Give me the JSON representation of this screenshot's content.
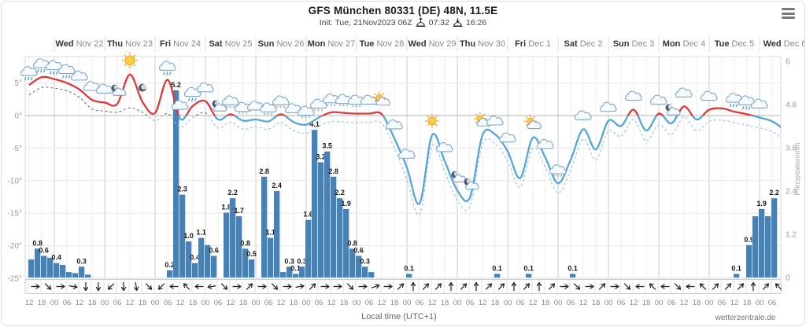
{
  "header": {
    "title": "GFS München 80331 (DE) 48N, 11.5E",
    "init_line": "Init: Tue, 21Nov2023 06Z",
    "sunrise_time": "07:32",
    "sunset_time": "16:26"
  },
  "footer": {
    "xlabel": "Local time (UTC+1)",
    "credit": "wetterzentrale.de"
  },
  "chart_data": {
    "type": "line+bar",
    "title": "GFS meteogram: 2m temperature / dewpoint lines with 3h precipitation bars and 6h wind arrows",
    "days": [
      {
        "day": "Wed",
        "date": "Nov 22"
      },
      {
        "day": "Thu",
        "date": "Nov 23"
      },
      {
        "day": "Fri",
        "date": "Nov 24"
      },
      {
        "day": "Sat",
        "date": "Nov 25"
      },
      {
        "day": "Sun",
        "date": "Nov 26"
      },
      {
        "day": "Mon",
        "date": "Nov 27"
      },
      {
        "day": "Tue",
        "date": "Nov 28"
      },
      {
        "day": "Wed",
        "date": "Nov 29"
      },
      {
        "day": "Thu",
        "date": "Nov 30"
      },
      {
        "day": "Fri",
        "date": "Dec 1"
      },
      {
        "day": "Sat",
        "date": "Dec 2"
      },
      {
        "day": "Sun",
        "date": "Dec 3"
      },
      {
        "day": "Mon",
        "date": "Dec 4"
      },
      {
        "day": "Tue",
        "date": "Dec 5"
      },
      {
        "day": "Wed",
        "date": "Dec 6"
      }
    ],
    "hours_per_step": 6,
    "hour_label_cycle": [
      "12",
      "18",
      "00",
      "06"
    ],
    "temp_axis": {
      "ticks": [
        5,
        0,
        -5,
        -10,
        -15,
        -20,
        -25
      ],
      "unit": "°"
    },
    "precip_axis": {
      "ticks": [
        6,
        4.8,
        3.6,
        2.4,
        1.2,
        0
      ],
      "label": "Precipitation/mm"
    },
    "temperature_c": [
      4.7,
      5.9,
      5.6,
      5.0,
      4.0,
      2.4,
      2.0,
      1.8,
      6.3,
      2.1,
      0.4,
      5.5,
      -0.5,
      1.5,
      2.2,
      -0.6,
      0.2,
      -0.8,
      -0.6,
      -0.9,
      0.2,
      -1.0,
      -1.4,
      -0.3,
      0.5,
      0.4,
      0.3,
      0.3,
      0.2,
      -3.5,
      -8.0,
      -13.5,
      -3.0,
      -7.0,
      -11.5,
      -12.6,
      -3.0,
      -2.9,
      -5.5,
      -9.6,
      -3.4,
      -6.5,
      -10.4,
      -6.8,
      -2.1,
      -5.2,
      -0.8,
      -1.6,
      0.9,
      -2.3,
      0.3,
      -1.2,
      1.4,
      -0.6,
      0.9,
      1.1,
      0.6,
      0.2,
      -0.3,
      -0.9,
      -2.2
    ],
    "dewpoint_c": [
      3.2,
      4.3,
      4.2,
      3.8,
      2.8,
      1.0,
      0.7,
      0.5,
      1.2,
      0.5,
      -0.8,
      0.3,
      -1.8,
      -0.3,
      0.4,
      -1.9,
      -1.0,
      -2.1,
      -1.7,
      -2.1,
      -1.1,
      -2.3,
      -2.7,
      -1.6,
      -0.9,
      -1.0,
      -1.1,
      -1.0,
      -1.2,
      -5.0,
      -9.8,
      -15.2,
      -4.6,
      -8.6,
      -13.0,
      -14.0,
      -4.4,
      -4.3,
      -7.0,
      -11.0,
      -5.0,
      -8.0,
      -11.9,
      -8.4,
      -3.6,
      -6.8,
      -2.4,
      -3.2,
      -0.6,
      -3.9,
      -1.4,
      -2.9,
      -0.2,
      -2.3,
      -0.9,
      -0.7,
      -1.1,
      -1.5,
      -1.9,
      -2.5,
      -3.8
    ],
    "precip_bars_3h": [
      [
        0,
        0.5,
        ""
      ],
      [
        1,
        0.8,
        "0.8"
      ],
      [
        2,
        0.6,
        "0.6"
      ],
      [
        3,
        0.55,
        ""
      ],
      [
        4,
        0.4,
        "0.4"
      ],
      [
        5,
        0.35,
        ""
      ],
      [
        6,
        0.15,
        ""
      ],
      [
        7,
        0.12,
        ""
      ],
      [
        8,
        0.3,
        "0.3"
      ],
      [
        9,
        0.08,
        ""
      ],
      [
        22,
        0.2,
        "0.2"
      ],
      [
        23,
        5.2,
        "5.2"
      ],
      [
        24,
        2.3,
        "2.3"
      ],
      [
        25,
        1.0,
        "1.0"
      ],
      [
        26,
        0.4,
        "0.4"
      ],
      [
        27,
        1.1,
        "1.1"
      ],
      [
        28,
        0.9,
        ""
      ],
      [
        29,
        0.6,
        "0.6"
      ],
      [
        31,
        1.8,
        "1.8"
      ],
      [
        32,
        2.2,
        "2.2"
      ],
      [
        33,
        1.7,
        "1.7"
      ],
      [
        34,
        0.8,
        "0.8"
      ],
      [
        35,
        0.5,
        "0.5"
      ],
      [
        37,
        2.8,
        "2.8"
      ],
      [
        38,
        1.1,
        "1.1"
      ],
      [
        39,
        2.4,
        "2.4"
      ],
      [
        40,
        0.15,
        ""
      ],
      [
        41,
        0.3,
        "0.3"
      ],
      [
        42,
        0.1,
        "0.1"
      ],
      [
        43,
        0.3,
        "0.3"
      ],
      [
        44,
        1.6,
        "1.6"
      ],
      [
        45,
        4.1,
        "4.1"
      ],
      [
        46,
        3.2,
        "3.2"
      ],
      [
        47,
        3.5,
        "3.5"
      ],
      [
        48,
        2.8,
        "2.8"
      ],
      [
        49,
        2.2,
        "2.2"
      ],
      [
        50,
        1.9,
        "1.9"
      ],
      [
        51,
        0.8,
        "0.8"
      ],
      [
        52,
        0.6,
        "0.6"
      ],
      [
        53,
        0.3,
        "0.3"
      ],
      [
        54,
        0.15,
        ""
      ],
      [
        60,
        0.1,
        "0.1"
      ],
      [
        74,
        0.1,
        "0.1"
      ],
      [
        79,
        0.1,
        "0.1"
      ],
      [
        86,
        0.1,
        "0.1"
      ],
      [
        112,
        0.1,
        "0.1"
      ],
      [
        114,
        0.9,
        "0.9"
      ],
      [
        115,
        1.7,
        ""
      ],
      [
        116,
        1.9,
        "1.9"
      ],
      [
        117,
        1.7,
        ""
      ],
      [
        118,
        2.2,
        "2.2"
      ]
    ],
    "wind_rotations_deg": [
      90,
      135,
      90,
      100,
      180,
      180,
      225,
      180,
      170,
      135,
      225,
      270,
      315,
      270,
      260,
      135,
      90,
      45,
      90,
      135,
      90,
      80,
      45,
      90,
      90,
      135,
      90,
      70,
      90,
      45,
      0,
      45,
      45,
      0,
      45,
      0,
      45,
      45,
      0,
      45,
      0,
      45,
      90,
      135,
      90,
      45,
      90,
      135,
      270,
      315,
      270,
      135,
      270,
      315,
      45,
      45,
      45,
      0,
      45,
      315
    ],
    "weather_icons": [
      [
        0,
        "rain"
      ],
      [
        1,
        "rain"
      ],
      [
        2,
        "rain"
      ],
      [
        3,
        "rain"
      ],
      [
        4,
        "cloud"
      ],
      [
        5,
        "cloud"
      ],
      [
        6,
        "cloud"
      ],
      [
        7,
        "mooncloud"
      ],
      [
        8,
        "sun"
      ],
      [
        9,
        "moon"
      ],
      [
        11,
        "rain"
      ],
      [
        12,
        "cloud"
      ],
      [
        13,
        "rain"
      ],
      [
        14,
        "cloud"
      ],
      [
        15,
        "mooncloud"
      ],
      [
        16,
        "snow"
      ],
      [
        17,
        "snow"
      ],
      [
        18,
        "cloud"
      ],
      [
        19,
        "snow"
      ],
      [
        20,
        "snow"
      ],
      [
        21,
        "cloud"
      ],
      [
        22,
        "snow"
      ],
      [
        23,
        "snow"
      ],
      [
        24,
        "snow"
      ],
      [
        25,
        "snow"
      ],
      [
        26,
        "snow"
      ],
      [
        27,
        "cloud"
      ],
      [
        28,
        "suncloud"
      ],
      [
        29,
        "cloud"
      ],
      [
        30,
        "cloud"
      ],
      [
        32,
        "sun"
      ],
      [
        33,
        "cloud"
      ],
      [
        34,
        "mooncloud"
      ],
      [
        35,
        "mooncloud"
      ],
      [
        36,
        "suncloud"
      ],
      [
        37,
        "cloud"
      ],
      [
        38,
        "cloud"
      ],
      [
        40,
        "suncloud"
      ],
      [
        41,
        "cloud"
      ],
      [
        42,
        "snow"
      ],
      [
        44,
        "cloud"
      ],
      [
        46,
        "cloud"
      ],
      [
        48,
        "cloud"
      ],
      [
        50,
        "cloud"
      ],
      [
        51,
        "mooncloud"
      ],
      [
        52,
        "cloud"
      ],
      [
        54,
        "cloud"
      ],
      [
        56,
        "rain"
      ],
      [
        57,
        "rain"
      ],
      [
        58,
        "cloud"
      ]
    ],
    "colors": {
      "temp_warm": "#d93b3b",
      "temp_cold": "#55a6d8",
      "dew_warm": "#666666",
      "dew_cold": "#8fbcd9",
      "bar": "#4a80b2",
      "grid": "#ececec",
      "day_grid": "#cccccc",
      "zero_line": "#b5b5b5",
      "axis_text": "#999999",
      "day_text": "#333333",
      "date_text": "#8a8a8a",
      "arrow": "#222222"
    }
  }
}
